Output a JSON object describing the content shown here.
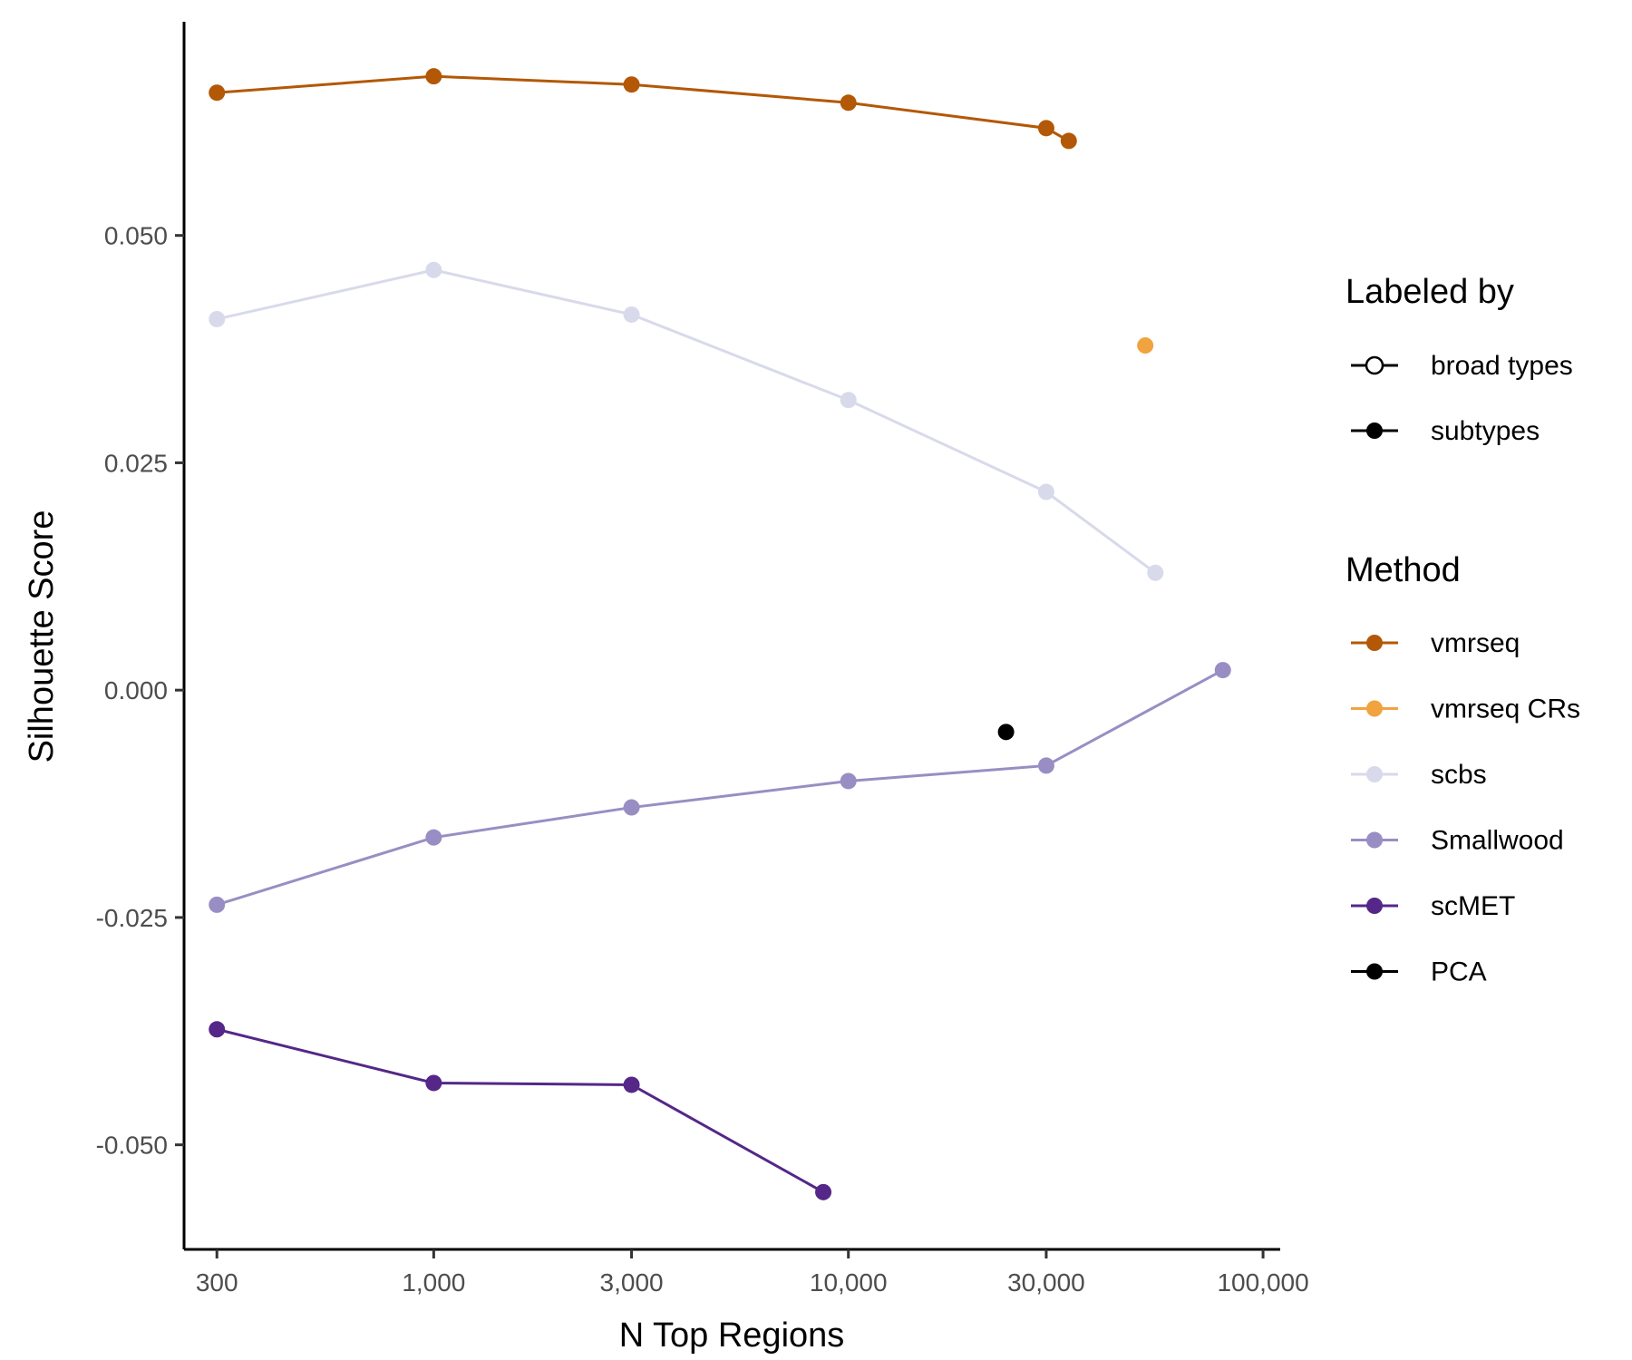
{
  "chart_data": {
    "type": "line",
    "xlabel": "N Top Regions",
    "ylabel": "Silhouette Score",
    "x_scale": "log10",
    "xlim": [
      250,
      110000
    ],
    "ylim": [
      -0.0615,
      0.0735
    ],
    "x_ticks": [
      300,
      1000,
      3000,
      10000,
      30000,
      100000
    ],
    "x_tick_labels": [
      "300",
      "1,000",
      "3,000",
      "10,000",
      "30,000",
      "100,000"
    ],
    "y_ticks": [
      -0.05,
      -0.025,
      0.0,
      0.025,
      0.05
    ],
    "y_tick_labels": [
      "-0.050",
      "-0.025",
      "0.000",
      "0.025",
      "0.050"
    ],
    "grid": false,
    "legend_position": "right",
    "legend": {
      "labeled_by": {
        "title": "Labeled by",
        "entries": [
          {
            "label": "broad types",
            "marker": "open-circle"
          },
          {
            "label": "subtypes",
            "marker": "filled-circle"
          }
        ]
      },
      "method": {
        "title": "Method",
        "entries": [
          {
            "label": "vmrseq",
            "color": "#b35806"
          },
          {
            "label": "vmrseq CRs",
            "color": "#f1a340"
          },
          {
            "label": "scbs",
            "color": "#d8daeb"
          },
          {
            "label": "Smallwood",
            "color": "#998ec3"
          },
          {
            "label": "scMET",
            "color": "#542788"
          },
          {
            "label": "PCA",
            "color": "#000000"
          }
        ]
      }
    },
    "series": [
      {
        "name": "vmrseq",
        "color": "#b35806",
        "x": [
          300,
          1000,
          3000,
          10000,
          30000,
          34000
        ],
        "y": [
          0.0657,
          0.0675,
          0.0666,
          0.0646,
          0.0618,
          0.0604
        ]
      },
      {
        "name": "vmrseq CRs",
        "color": "#f1a340",
        "x": [
          52000
        ],
        "y": [
          0.0379
        ]
      },
      {
        "name": "scbs",
        "color": "#d8daeb",
        "x": [
          300,
          1000,
          3000,
          10000,
          30000,
          55000
        ],
        "y": [
          0.0408,
          0.0462,
          0.0413,
          0.0319,
          0.0218,
          0.0129
        ]
      },
      {
        "name": "Smallwood",
        "color": "#998ec3",
        "x": [
          300,
          1000,
          3000,
          10000,
          30000,
          80000
        ],
        "y": [
          -0.0236,
          -0.0162,
          -0.0129,
          -0.01,
          -0.0083,
          0.0022
        ]
      },
      {
        "name": "scMET",
        "color": "#542788",
        "x": [
          300,
          1000,
          3000,
          8700
        ],
        "y": [
          -0.0373,
          -0.0432,
          -0.0434,
          -0.0552
        ]
      },
      {
        "name": "PCA",
        "color": "#000000",
        "x": [
          24000
        ],
        "y": [
          -0.0046
        ]
      }
    ]
  }
}
